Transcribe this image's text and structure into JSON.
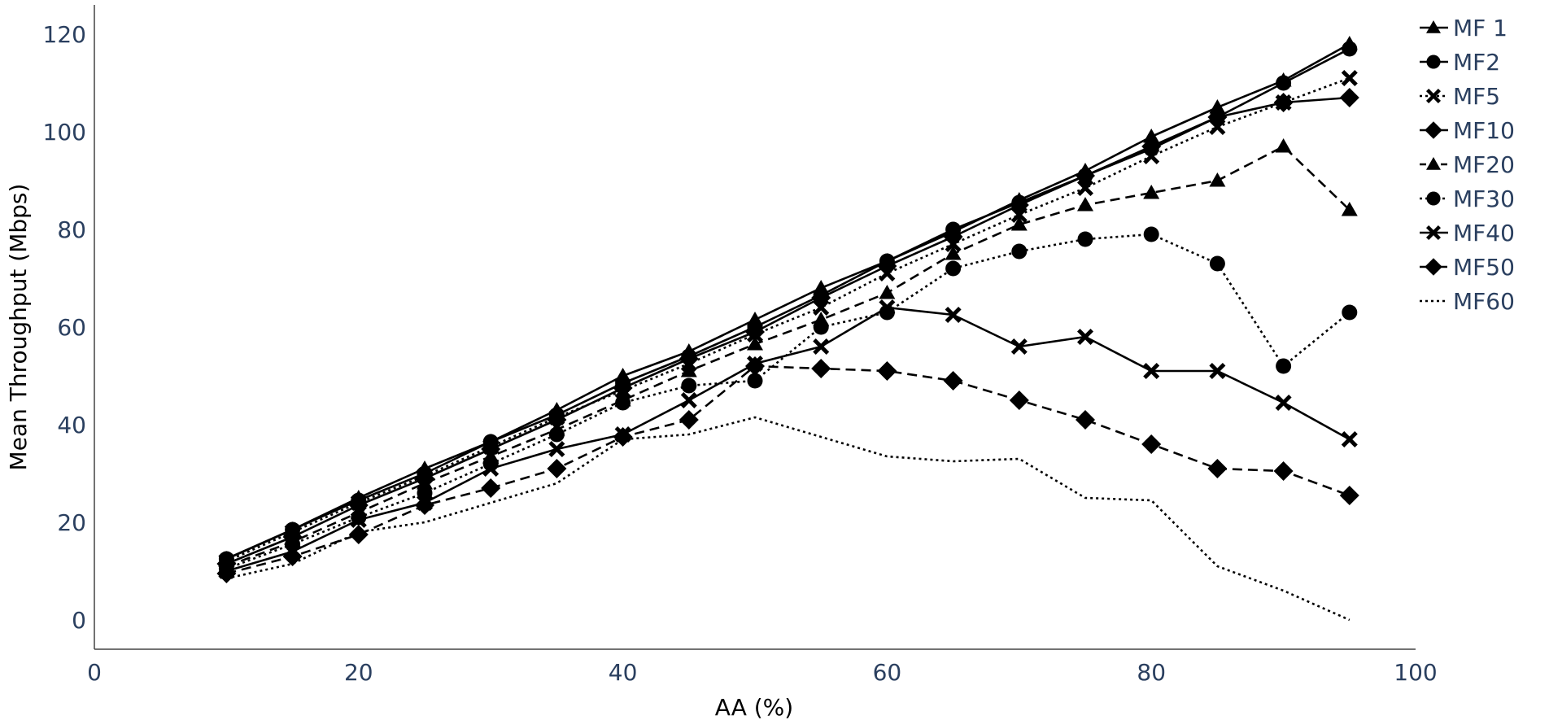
{
  "chart_data": {
    "type": "line",
    "title": "",
    "xlabel": "AA (%)",
    "ylabel": "Mean Throughput (Mbps)",
    "xlim": [
      0,
      100
    ],
    "ylim": [
      -6,
      126
    ],
    "xticks": [
      0,
      20,
      40,
      60,
      80,
      100
    ],
    "yticks": [
      0,
      20,
      40,
      60,
      80,
      100,
      120
    ],
    "grid": false,
    "legend_position": "top-right",
    "x": [
      10,
      15,
      20,
      25,
      30,
      35,
      40,
      45,
      50,
      55,
      60,
      65,
      70,
      75,
      80,
      85,
      90,
      95
    ],
    "series": [
      {
        "name": "MF 1",
        "marker": "triangle",
        "dash": "solid",
        "values": [
          12.5,
          18.5,
          25,
          31,
          36.5,
          43,
          50,
          55,
          61.5,
          68,
          73.5,
          79.5,
          86,
          92,
          99,
          105,
          110.5,
          118
        ]
      },
      {
        "name": "MF2",
        "marker": "circle",
        "dash": "solid",
        "values": [
          12.5,
          18.5,
          24.5,
          30,
          36.5,
          42,
          48.5,
          54,
          60,
          66.5,
          73.5,
          80,
          85.5,
          91,
          96.5,
          103,
          110,
          117
        ]
      },
      {
        "name": "MF5",
        "marker": "x",
        "dash": "dotted",
        "values": [
          12,
          18,
          24,
          29.5,
          35.5,
          41.5,
          47,
          52.5,
          58.5,
          64,
          71,
          77,
          83,
          88.5,
          95,
          101,
          106,
          111
        ]
      },
      {
        "name": "MF10",
        "marker": "diamond",
        "dash": "solid",
        "values": [
          11.5,
          17,
          23.5,
          29,
          35,
          41,
          47.5,
          53.5,
          59,
          66,
          72.5,
          78.5,
          85,
          91,
          97,
          103,
          106,
          107
        ]
      },
      {
        "name": "MF20",
        "marker": "triangle",
        "dash": "dashed",
        "values": [
          11,
          16,
          22,
          28,
          33.5,
          39,
          45,
          51,
          56.5,
          61.5,
          67,
          75,
          81,
          85,
          87.5,
          90,
          97,
          84
        ]
      },
      {
        "name": "MF30",
        "marker": "circle",
        "dash": "dotted",
        "values": [
          10.5,
          15.5,
          21,
          26,
          32,
          38,
          44.5,
          48,
          49,
          60,
          63,
          72,
          75.5,
          78,
          79,
          73,
          52,
          63
        ]
      },
      {
        "name": "MF40",
        "marker": "x",
        "dash": "solid",
        "values": [
          10,
          14,
          20.5,
          24,
          31,
          35,
          38,
          45,
          52.5,
          56,
          64,
          62.5,
          56,
          58,
          51,
          51,
          44.5,
          37
        ]
      },
      {
        "name": "MF50",
        "marker": "diamond",
        "dash": "dashed",
        "values": [
          9.5,
          13,
          17.5,
          23.5,
          27,
          31,
          37.5,
          41,
          52,
          51.5,
          51,
          49,
          45,
          41,
          36,
          31,
          30.5,
          25.5
        ]
      },
      {
        "name": "MF60",
        "marker": "none",
        "dash": "dotted",
        "values": [
          8.5,
          11.5,
          18,
          20,
          24,
          28,
          37,
          38,
          41.5,
          37.5,
          33.5,
          32.5,
          33,
          25,
          24.5,
          11,
          6,
          0
        ]
      }
    ]
  }
}
